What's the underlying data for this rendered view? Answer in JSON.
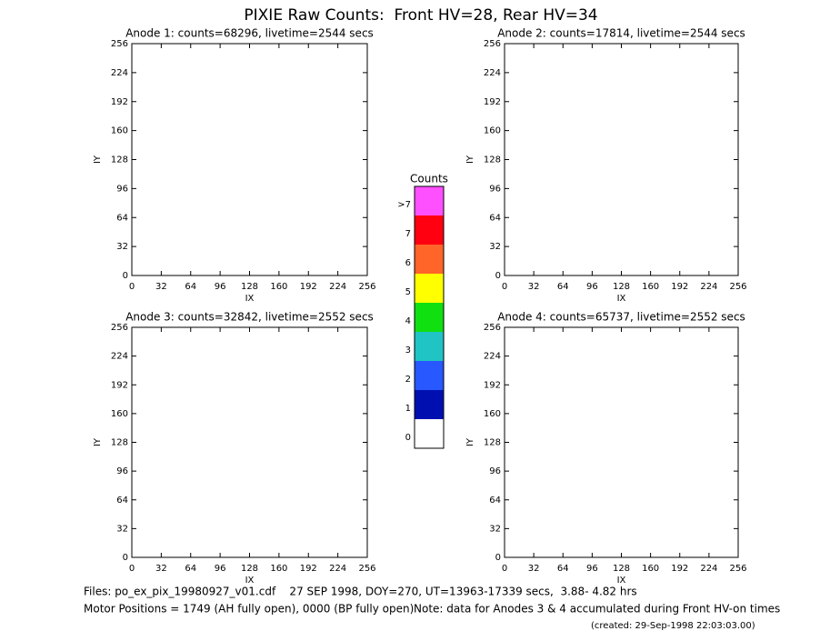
{
  "title": "PIXIE Raw Counts:  Front HV=28, Rear HV=34",
  "chart_data": [
    {
      "type": "heatmap",
      "title": "Anode 1: counts=68296, livetime=2544 secs",
      "x_label": "IX",
      "y_label": "IY",
      "xlim": [
        0,
        256
      ],
      "ylim": [
        0,
        256
      ],
      "xticks": [
        0,
        32,
        64,
        96,
        128,
        160,
        192,
        224,
        256
      ],
      "yticks": [
        0,
        32,
        64,
        96,
        128,
        160,
        192,
        224,
        256
      ]
    },
    {
      "type": "heatmap",
      "title": "Anode 2: counts=17814, livetime=2544 secs",
      "x_label": "IX",
      "y_label": "IY",
      "xlim": [
        0,
        256
      ],
      "ylim": [
        0,
        256
      ],
      "xticks": [
        0,
        32,
        64,
        96,
        128,
        160,
        192,
        224,
        256
      ],
      "yticks": [
        0,
        32,
        64,
        96,
        128,
        160,
        192,
        224,
        256
      ]
    },
    {
      "type": "heatmap",
      "title": "Anode 3: counts=32842, livetime=2552 secs",
      "x_label": "IX",
      "y_label": "IY",
      "xlim": [
        0,
        256
      ],
      "ylim": [
        0,
        256
      ],
      "xticks": [
        0,
        32,
        64,
        96,
        128,
        160,
        192,
        224,
        256
      ],
      "yticks": [
        0,
        32,
        64,
        96,
        128,
        160,
        192,
        224,
        256
      ]
    },
    {
      "type": "heatmap",
      "title": "Anode 4: counts=65737, livetime=2552 secs",
      "x_label": "IX",
      "y_label": "IY",
      "xlim": [
        0,
        256
      ],
      "ylim": [
        0,
        256
      ],
      "xticks": [
        0,
        32,
        64,
        96,
        128,
        160,
        192,
        224,
        256
      ],
      "yticks": [
        0,
        32,
        64,
        96,
        128,
        160,
        192,
        224,
        256
      ]
    }
  ],
  "colorbar": {
    "title": "Counts",
    "levels": [
      {
        "label": "0",
        "color": "#ffffff"
      },
      {
        "label": "1",
        "color": "#0010b0"
      },
      {
        "label": "2",
        "color": "#2858ff"
      },
      {
        "label": "3",
        "color": "#20c4c4"
      },
      {
        "label": "4",
        "color": "#10e010"
      },
      {
        "label": "5",
        "color": "#ffff00"
      },
      {
        "label": "6",
        "color": "#ff6428"
      },
      {
        "label": "7",
        "color": "#ff0010"
      },
      {
        "label": ">7",
        "color": "#ff50ff"
      }
    ]
  },
  "footer": {
    "files": "Files: po_ex_pix_19980927_v01.cdf    27 SEP 1998, DOY=270, UT=13963-17339 secs,  3.88- 4.82 hrs",
    "motor": "Motor Positions = 1749 (AH fully open), 0000 (BP fully open)",
    "note": "Note: data for Anodes 3 & 4 accumulated during Front HV-on times",
    "created": "(created: 29-Sep-1998 22:03:03.00)"
  }
}
